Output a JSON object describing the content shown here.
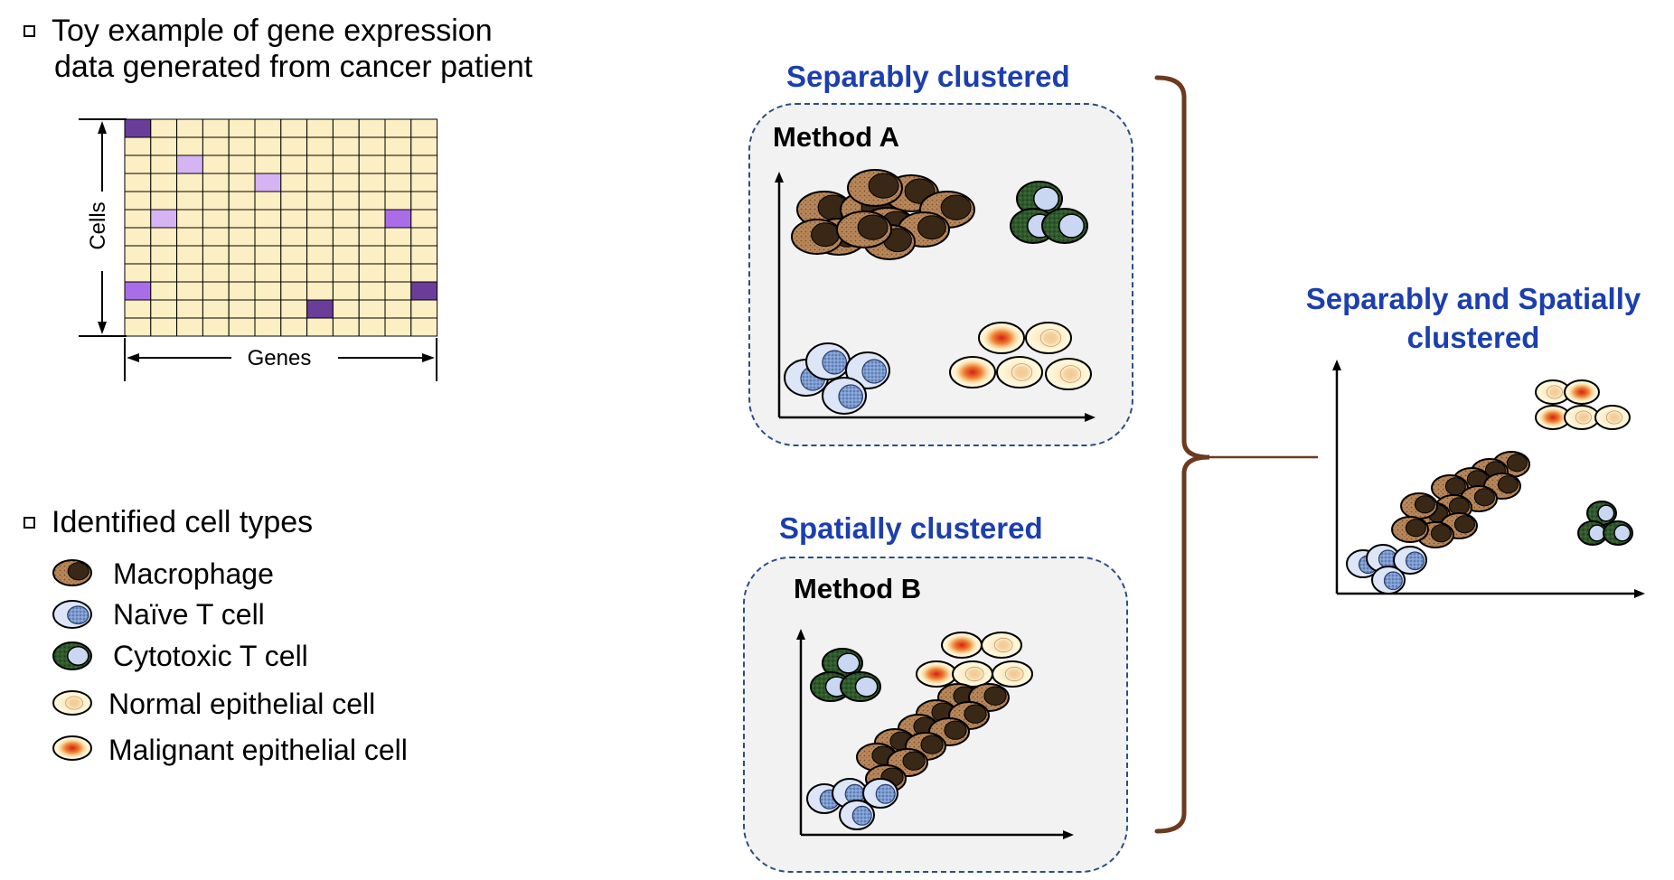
{
  "left": {
    "toy_example_lines": [
      "Toy example of gene expression",
      "data generated from cancer patient"
    ],
    "matrix": {
      "y_label": "Cells",
      "x_label": "Genes"
    },
    "identified_title": "Identified cell types",
    "legend": [
      {
        "key": "macrophage",
        "label": "Macrophage"
      },
      {
        "key": "naive",
        "label": "Naïve T cell"
      },
      {
        "key": "cytotoxic",
        "label": "Cytotoxic T cell"
      },
      {
        "key": "normal",
        "label": "Normal epithelial cell"
      },
      {
        "key": "malignant",
        "label": "Malignant epithelial cell"
      }
    ]
  },
  "middle": {
    "top_heading": "Separably clustered",
    "top_method": "Method A",
    "bottom_heading": "Spatially clustered",
    "bottom_method": "Method B"
  },
  "right": {
    "heading_lines": [
      "Separably and Spatially",
      "clustered"
    ]
  },
  "colors": {
    "heading_blue": "#1c3fae",
    "box_border": "#2c4e80",
    "bracket": "#6b3a1f",
    "matrix_cell": "#fcefc4",
    "dark_purple": "#6a3d9a",
    "medium_purple": "#a96de8",
    "light_purple": "#d6b4f3"
  }
}
